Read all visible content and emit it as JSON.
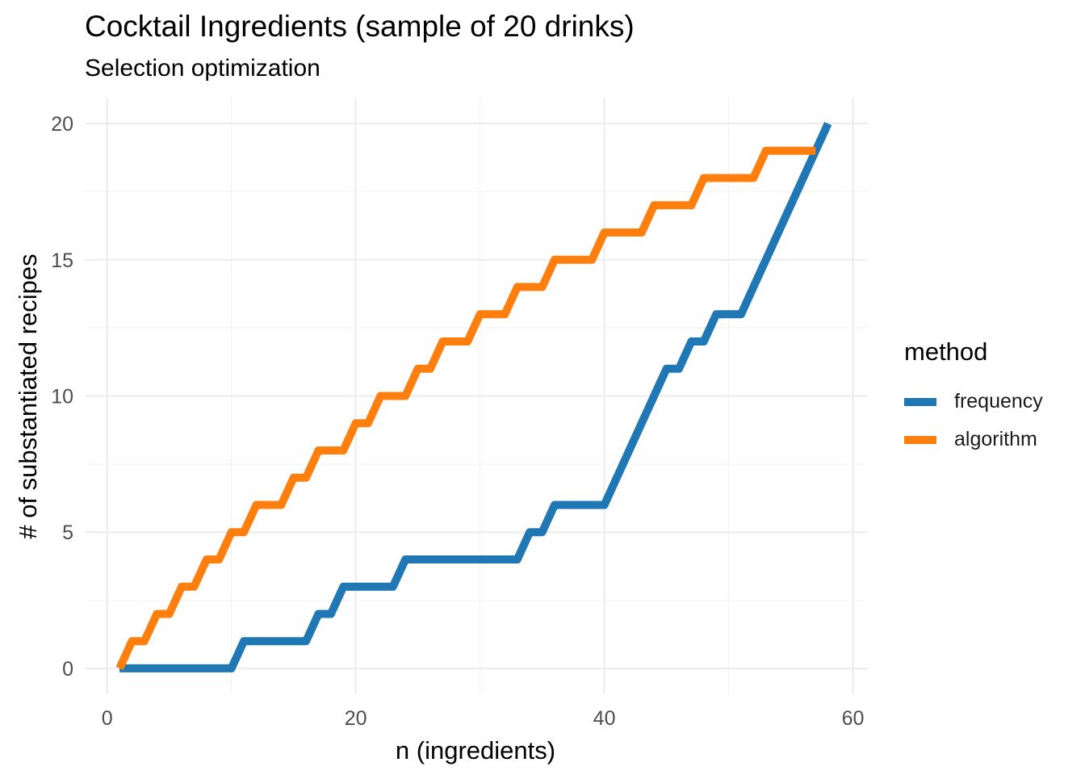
{
  "chart_data": {
    "type": "line",
    "title": "Cocktail Ingredients (sample of 20 drinks)",
    "subtitle": "Selection optimization",
    "xlabel": "n (ingredients)",
    "ylabel": "# of substantiated recipes",
    "xlim": [
      -1.8,
      61.2
    ],
    "ylim": [
      -0.95,
      20.95
    ],
    "xticks": [
      0,
      20,
      40,
      60
    ],
    "yticks": [
      0,
      5,
      10,
      15,
      20
    ],
    "grid": true,
    "legend": {
      "title": "method",
      "position": "right"
    },
    "series": [
      {
        "name": "frequency",
        "color": "#1f77b4",
        "x": [
          1,
          2,
          3,
          4,
          5,
          6,
          7,
          8,
          9,
          10,
          11,
          12,
          13,
          14,
          15,
          16,
          17,
          18,
          19,
          20,
          21,
          22,
          23,
          24,
          25,
          26,
          27,
          28,
          29,
          30,
          31,
          32,
          33,
          34,
          35,
          36,
          37,
          38,
          39,
          40,
          41,
          42,
          43,
          44,
          45,
          46,
          47,
          48,
          49,
          50,
          51,
          52,
          53,
          54,
          55,
          56,
          57,
          58
        ],
        "y": [
          0,
          0,
          0,
          0,
          0,
          0,
          0,
          0,
          0,
          0,
          1,
          1,
          1,
          1,
          1,
          1,
          2,
          2,
          3,
          3,
          3,
          3,
          3,
          4,
          4,
          4,
          4,
          4,
          4,
          4,
          4,
          4,
          4,
          5,
          5,
          6,
          6,
          6,
          6,
          6,
          7,
          8,
          9,
          10,
          11,
          11,
          12,
          12,
          13,
          13,
          13,
          14,
          15,
          16,
          17,
          18,
          19,
          20
        ]
      },
      {
        "name": "algorithm",
        "color": "#ff7f0e",
        "x": [
          1,
          2,
          3,
          4,
          5,
          6,
          7,
          8,
          9,
          10,
          11,
          12,
          13,
          14,
          15,
          16,
          17,
          18,
          19,
          20,
          21,
          22,
          23,
          24,
          25,
          26,
          27,
          28,
          29,
          30,
          31,
          32,
          33,
          34,
          35,
          36,
          37,
          38,
          39,
          40,
          41,
          42,
          43,
          44,
          45,
          46,
          47,
          48,
          49,
          50,
          51,
          52,
          53,
          54,
          55,
          56,
          57
        ],
        "y": [
          0,
          1,
          1,
          2,
          2,
          3,
          3,
          4,
          4,
          5,
          5,
          6,
          6,
          6,
          7,
          7,
          8,
          8,
          8,
          9,
          9,
          10,
          10,
          10,
          11,
          11,
          12,
          12,
          12,
          13,
          13,
          13,
          14,
          14,
          14,
          15,
          15,
          15,
          15,
          16,
          16,
          16,
          16,
          17,
          17,
          17,
          17,
          18,
          18,
          18,
          18,
          18,
          19,
          19,
          19,
          19,
          19
        ]
      }
    ]
  }
}
